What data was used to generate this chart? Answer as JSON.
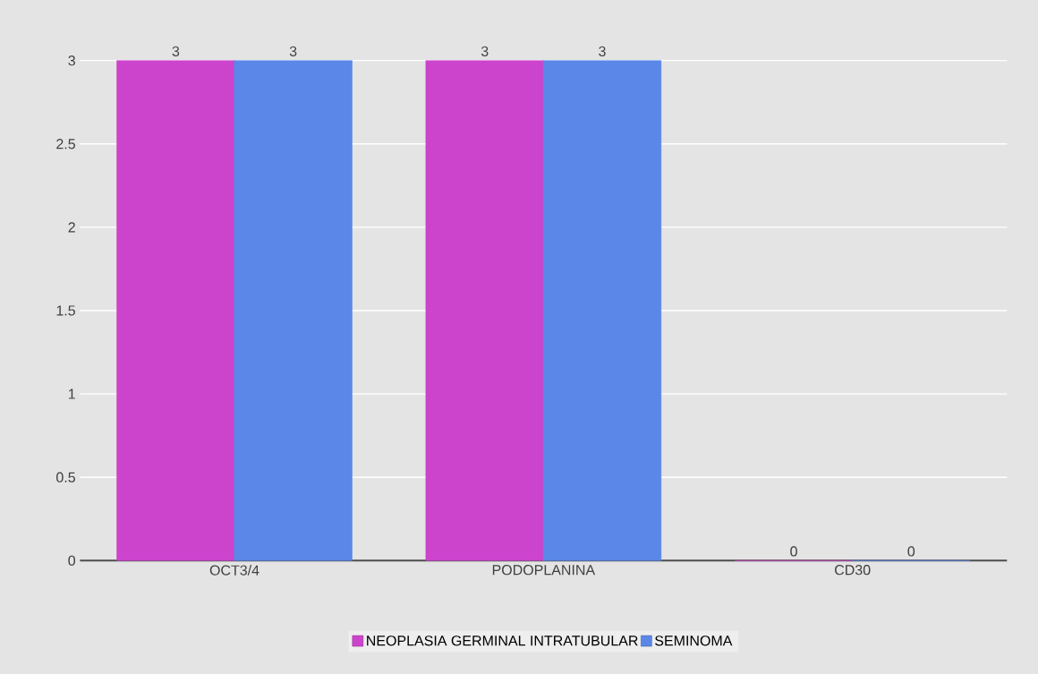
{
  "chart_data": {
    "type": "bar",
    "categories": [
      "OCT3/4",
      "PODOPLANINA",
      "CD30"
    ],
    "series": [
      {
        "name": "NEOPLASIA GERMINAL INTRATUBULAR",
        "color": "#cc44cc",
        "values": [
          3,
          3,
          0
        ]
      },
      {
        "name": "SEMINOMA",
        "color": "#5b87e8",
        "values": [
          3,
          3,
          0
        ]
      }
    ],
    "ylim": [
      0,
      3
    ],
    "yticks": [
      0,
      0.5,
      1,
      1.5,
      2,
      2.5,
      3
    ],
    "grid": "y",
    "data_labels": true,
    "legend": "bottom"
  }
}
